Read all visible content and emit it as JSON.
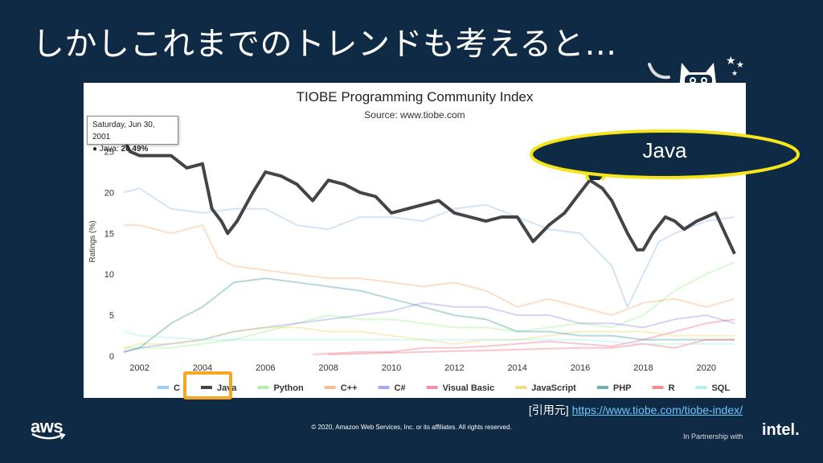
{
  "slide": {
    "title": "しかしこれまでのトレンドも考えると…",
    "callout": "Java",
    "source_prefix": "[引用元]",
    "source_url": "https://www.tiobe.com/tiobe-index/",
    "copyright": "© 2020, Amazon Web Services, Inc. or its affiliates. All rights reserved.",
    "aws_logo": "aws",
    "partner": "In Partnership with",
    "intel_logo": "intel."
  },
  "tooltip": {
    "date": "Saturday, Jun 30, 2001",
    "series": "Java",
    "value": "26.49%"
  },
  "chart_data": {
    "type": "line",
    "title": "TIOBE Programming Community Index",
    "subtitle": "Source: www.tiobe.com",
    "ylabel": "Ratings (%)",
    "xlabel": "",
    "xlim": [
      2001.5,
      2020.9
    ],
    "ylim": [
      0,
      28
    ],
    "xticks": [
      "2002",
      "2004",
      "2006",
      "2008",
      "2010",
      "2012",
      "2014",
      "2016",
      "2018",
      "2020"
    ],
    "yticks": [
      "0",
      "5",
      "10",
      "15",
      "20",
      "25"
    ],
    "grid": false,
    "legend_position": "bottom",
    "highlight_series": "Java",
    "series": [
      {
        "name": "C",
        "color": "#7cb5ec",
        "points": [
          [
            2001.5,
            20
          ],
          [
            2002,
            20.5
          ],
          [
            2003,
            18
          ],
          [
            2004,
            17.5
          ],
          [
            2005,
            18
          ],
          [
            2006,
            18
          ],
          [
            2007,
            16
          ],
          [
            2008,
            15.5
          ],
          [
            2009,
            17
          ],
          [
            2010,
            17
          ],
          [
            2011,
            16.5
          ],
          [
            2012,
            18
          ],
          [
            2013,
            18.5
          ],
          [
            2014,
            17
          ],
          [
            2015,
            15.5
          ],
          [
            2016,
            15
          ],
          [
            2017,
            11
          ],
          [
            2017.5,
            6
          ],
          [
            2018,
            10
          ],
          [
            2018.5,
            14
          ],
          [
            2019,
            15
          ],
          [
            2020,
            16.5
          ],
          [
            2020.9,
            17
          ]
        ]
      },
      {
        "name": "Java",
        "color": "#434348",
        "points": [
          [
            2001.5,
            26.49
          ],
          [
            2001.7,
            25
          ],
          [
            2002,
            24.5
          ],
          [
            2002.5,
            24.5
          ],
          [
            2003,
            24.5
          ],
          [
            2003.5,
            23
          ],
          [
            2004,
            23.5
          ],
          [
            2004.3,
            18
          ],
          [
            2004.6,
            16.5
          ],
          [
            2004.8,
            15
          ],
          [
            2005.1,
            16.5
          ],
          [
            2005.6,
            20
          ],
          [
            2006,
            22.5
          ],
          [
            2006.5,
            22
          ],
          [
            2007,
            21
          ],
          [
            2007.5,
            19
          ],
          [
            2008,
            21.5
          ],
          [
            2008.5,
            21
          ],
          [
            2009,
            20
          ],
          [
            2009.5,
            19.5
          ],
          [
            2010,
            17.5
          ],
          [
            2010.5,
            18
          ],
          [
            2011,
            18.5
          ],
          [
            2011.5,
            19
          ],
          [
            2012,
            17.5
          ],
          [
            2012.5,
            17
          ],
          [
            2013,
            16.5
          ],
          [
            2013.5,
            17
          ],
          [
            2014,
            17
          ],
          [
            2014.5,
            14
          ],
          [
            2015,
            16
          ],
          [
            2015.5,
            17.5
          ],
          [
            2016,
            20
          ],
          [
            2016.3,
            21.5
          ],
          [
            2016.7,
            20.5
          ],
          [
            2017,
            19
          ],
          [
            2017.5,
            15
          ],
          [
            2017.8,
            13
          ],
          [
            2018,
            13
          ],
          [
            2018.3,
            15
          ],
          [
            2018.7,
            17
          ],
          [
            2019,
            16.5
          ],
          [
            2019.3,
            15.5
          ],
          [
            2019.7,
            16.5
          ],
          [
            2020,
            17
          ],
          [
            2020.3,
            17.5
          ],
          [
            2020.6,
            15
          ],
          [
            2020.9,
            12.5
          ]
        ]
      },
      {
        "name": "Python",
        "color": "#90ed7d",
        "points": [
          [
            2001.5,
            1
          ],
          [
            2002,
            1
          ],
          [
            2003,
            1
          ],
          [
            2004,
            1.5
          ],
          [
            2005,
            2
          ],
          [
            2006,
            3
          ],
          [
            2007,
            4
          ],
          [
            2008,
            5
          ],
          [
            2009,
            4.5
          ],
          [
            2010,
            4.5
          ],
          [
            2011,
            4
          ],
          [
            2012,
            3.5
          ],
          [
            2013,
            3.5
          ],
          [
            2014,
            3
          ],
          [
            2015,
            3.5
          ],
          [
            2016,
            4
          ],
          [
            2017,
            3.5
          ],
          [
            2018,
            5
          ],
          [
            2019,
            8
          ],
          [
            2020,
            10
          ],
          [
            2020.9,
            11.5
          ]
        ]
      },
      {
        "name": "C++",
        "color": "#f7a35c",
        "points": [
          [
            2001.5,
            16
          ],
          [
            2002,
            16
          ],
          [
            2003,
            15
          ],
          [
            2004,
            16
          ],
          [
            2004.5,
            12
          ],
          [
            2005,
            11
          ],
          [
            2006,
            10.5
          ],
          [
            2007,
            10
          ],
          [
            2008,
            9.5
          ],
          [
            2009,
            9.5
          ],
          [
            2010,
            9
          ],
          [
            2011,
            8.5
          ],
          [
            2012,
            9
          ],
          [
            2013,
            8
          ],
          [
            2014,
            6
          ],
          [
            2015,
            7
          ],
          [
            2016,
            6
          ],
          [
            2017,
            5
          ],
          [
            2018,
            6.5
          ],
          [
            2019,
            7
          ],
          [
            2020,
            6
          ],
          [
            2020.9,
            7
          ]
        ]
      },
      {
        "name": "C#",
        "color": "#8085e9",
        "points": [
          [
            2001.5,
            0.5
          ],
          [
            2002,
            1
          ],
          [
            2003,
            1.5
          ],
          [
            2004,
            2
          ],
          [
            2005,
            3
          ],
          [
            2006,
            3.5
          ],
          [
            2007,
            4
          ],
          [
            2008,
            4.5
          ],
          [
            2009,
            5
          ],
          [
            2010,
            5.5
          ],
          [
            2011,
            6.5
          ],
          [
            2012,
            6
          ],
          [
            2013,
            6
          ],
          [
            2014,
            5
          ],
          [
            2015,
            5
          ],
          [
            2016,
            4
          ],
          [
            2017,
            4
          ],
          [
            2018,
            3.5
          ],
          [
            2019,
            4.5
          ],
          [
            2020,
            5
          ],
          [
            2020.9,
            4
          ]
        ]
      },
      {
        "name": "Visual Basic",
        "color": "#f15c80",
        "points": [
          [
            2007.5,
            0.2
          ],
          [
            2009,
            0.5
          ],
          [
            2010,
            0.5
          ],
          [
            2011,
            1
          ],
          [
            2012,
            1
          ],
          [
            2013,
            1.2
          ],
          [
            2014,
            1.5
          ],
          [
            2015,
            1.8
          ],
          [
            2016,
            1.5
          ],
          [
            2017,
            1.2
          ],
          [
            2018,
            2
          ],
          [
            2019,
            3
          ],
          [
            2020,
            4
          ],
          [
            2020.9,
            4.5
          ]
        ]
      },
      {
        "name": "JavaScript",
        "color": "#e4d354",
        "points": [
          [
            2001.5,
            1
          ],
          [
            2002,
            1.5
          ],
          [
            2003,
            1.5
          ],
          [
            2004,
            2
          ],
          [
            2005,
            3
          ],
          [
            2006,
            3.5
          ],
          [
            2007,
            3.5
          ],
          [
            2008,
            3
          ],
          [
            2009,
            3
          ],
          [
            2010,
            2.5
          ],
          [
            2011,
            2
          ],
          [
            2012,
            1.5
          ],
          [
            2013,
            2
          ],
          [
            2014,
            2
          ],
          [
            2015,
            2.5
          ],
          [
            2016,
            3
          ],
          [
            2017,
            3
          ],
          [
            2018,
            3
          ],
          [
            2019,
            2.5
          ],
          [
            2020,
            2.5
          ],
          [
            2020.9,
            2.5
          ]
        ]
      },
      {
        "name": "PHP",
        "color": "#2b908f",
        "points": [
          [
            2001.5,
            0.5
          ],
          [
            2002,
            1
          ],
          [
            2003,
            4
          ],
          [
            2004,
            6
          ],
          [
            2005,
            9
          ],
          [
            2006,
            9.5
          ],
          [
            2007,
            9
          ],
          [
            2008,
            8.5
          ],
          [
            2009,
            8
          ],
          [
            2010,
            7
          ],
          [
            2011,
            6
          ],
          [
            2012,
            5
          ],
          [
            2013,
            4.5
          ],
          [
            2014,
            3
          ],
          [
            2015,
            3
          ],
          [
            2016,
            2.5
          ],
          [
            2017,
            2.5
          ],
          [
            2018,
            2
          ],
          [
            2019,
            2
          ],
          [
            2020,
            2
          ],
          [
            2020.9,
            2
          ]
        ]
      },
      {
        "name": "R",
        "color": "#f45b5b",
        "points": [
          [
            2008,
            0.2
          ],
          [
            2010,
            0.4
          ],
          [
            2012,
            0.6
          ],
          [
            2014,
            0.8
          ],
          [
            2016,
            1
          ],
          [
            2017,
            1
          ],
          [
            2018,
            1.5
          ],
          [
            2019,
            1
          ],
          [
            2020,
            2
          ],
          [
            2020.9,
            2
          ]
        ]
      },
      {
        "name": "SQL",
        "color": "#91e8e1",
        "points": [
          [
            2001.5,
            3
          ],
          [
            2002,
            2.5
          ],
          [
            2004,
            2
          ],
          [
            2006,
            2
          ],
          [
            2008,
            2
          ],
          [
            2010,
            2
          ],
          [
            2012,
            2
          ],
          [
            2014,
            2
          ],
          [
            2016,
            2
          ],
          [
            2018,
            1.5
          ],
          [
            2019,
            1.5
          ],
          [
            2020,
            1.5
          ],
          [
            2020.9,
            1.5
          ]
        ]
      }
    ]
  }
}
